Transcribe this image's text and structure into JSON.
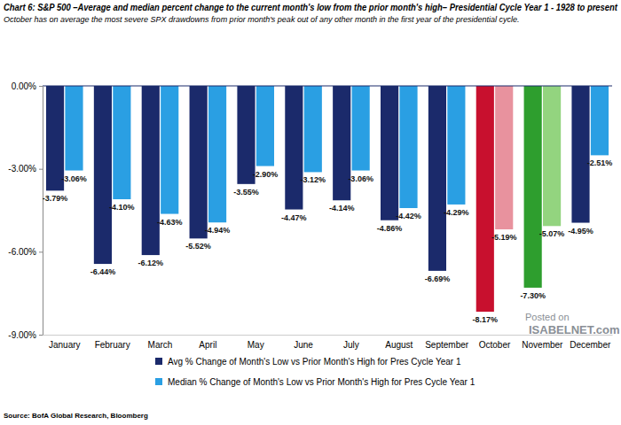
{
  "chart_data": {
    "type": "bar",
    "title": "Chart 6: S&P 500 –Average and median percent change to the current month's low from the prior month's high– Presidential Cycle Year 1 - 1928 to present",
    "subtitle": "October has on average the most severe SPX drawdowns from prior month's peak out of any other month in the first year of the presidential cycle.",
    "source": "Source: BofA Global Research, Bloomberg",
    "annotations": [
      "Posted on",
      "ISABELNET.com"
    ],
    "categories": [
      "January",
      "February",
      "March",
      "April",
      "May",
      "June",
      "July",
      "August",
      "September",
      "October",
      "November",
      "December"
    ],
    "series": [
      {
        "name": "Avg % Change of Month's Low vs Prior Month's High for Pres Cycle Year 1",
        "color": "#1b2a6b",
        "colors": [
          "#1b2a6b",
          "#1b2a6b",
          "#1b2a6b",
          "#1b2a6b",
          "#1b2a6b",
          "#1b2a6b",
          "#1b2a6b",
          "#1b2a6b",
          "#1b2a6b",
          "#c8102e",
          "#2e9e2e",
          "#1b2a6b"
        ],
        "values": [
          -3.79,
          -6.44,
          -6.12,
          -5.52,
          -3.55,
          -4.47,
          -4.14,
          -4.86,
          -6.69,
          -8.17,
          -7.3,
          -4.95
        ],
        "value_labels": [
          "-3.79%",
          "-6.44%",
          "-6.12%",
          "-5.52%",
          "-3.55%",
          "-4.47%",
          "-4.14%",
          "-4.86%",
          "-6.69%",
          "-8.17%",
          "-7.30%",
          "-4.95%"
        ]
      },
      {
        "name": "Median % Change of Month's Low vs Prior Month's High for Pres Cycle Year 1",
        "color": "#2a9fe3",
        "colors": [
          "#2a9fe3",
          "#2a9fe3",
          "#2a9fe3",
          "#2a9fe3",
          "#2a9fe3",
          "#2a9fe3",
          "#2a9fe3",
          "#2a9fe3",
          "#2a9fe3",
          "#e8929e",
          "#93d47f",
          "#2a9fe3"
        ],
        "values": [
          -3.06,
          -4.1,
          -4.63,
          -4.94,
          -2.9,
          -3.12,
          -3.06,
          -4.42,
          -4.29,
          -5.19,
          -5.07,
          -2.51
        ],
        "value_labels": [
          "-3.06%",
          "-4.10%",
          "-4.63%",
          "-4.94%",
          "-2.90%",
          "-3.12%",
          "-3.06%",
          "-4.42%",
          "-4.29%",
          "-5.19%",
          "-5.07%",
          "-2.51%"
        ]
      }
    ],
    "ylim": [
      -9,
      0
    ],
    "yticks": [
      {
        "value": 0,
        "label": "0.00%"
      },
      {
        "value": -3,
        "label": "-3.00%"
      },
      {
        "value": -6,
        "label": "-6.00%"
      },
      {
        "value": -9,
        "label": "-9.00%"
      }
    ],
    "grid": false,
    "legend": "bottom",
    "data_labels": true
  }
}
